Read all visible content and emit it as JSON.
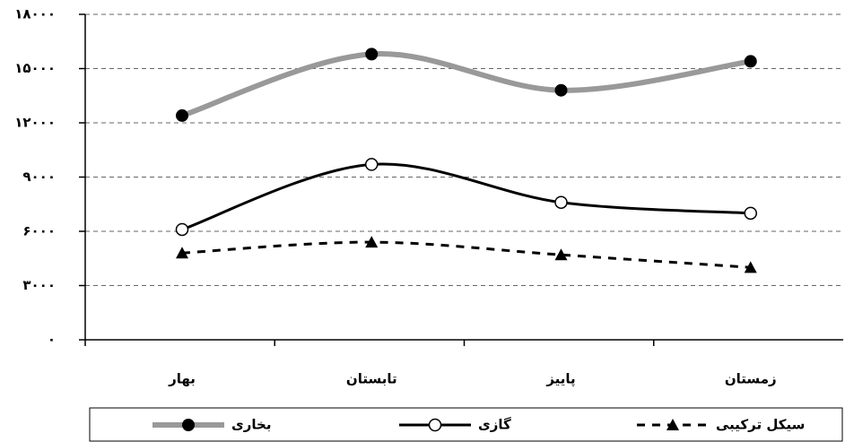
{
  "chart_data": {
    "type": "line",
    "categories": [
      "بهار",
      "تابستان",
      "پاییز",
      "زمستان"
    ],
    "series": [
      {
        "name": "بخاری",
        "color": "#999999",
        "values": [
          12400,
          15800,
          13800,
          15400
        ]
      },
      {
        "name": "گازی",
        "color": "#000000",
        "values": [
          6100,
          9700,
          7600,
          7000
        ]
      },
      {
        "name": "سیکل ترکیبی",
        "color": "#000000",
        "values": [
          4800,
          5400,
          4700,
          4000
        ]
      }
    ],
    "ylim": [
      0,
      18000
    ],
    "yticks": [
      {
        "value": 0,
        "label": "۰"
      },
      {
        "value": 3000,
        "label": "۳۰۰۰"
      },
      {
        "value": 6000,
        "label": "۶۰۰۰"
      },
      {
        "value": 9000,
        "label": "۹۰۰۰"
      },
      {
        "value": 12000,
        "label": "۱۲۰۰۰"
      },
      {
        "value": 15000,
        "label": "۱۵۰۰۰"
      },
      {
        "value": 18000,
        "label": "۱۸۰۰۰"
      }
    ],
    "grid": true
  }
}
